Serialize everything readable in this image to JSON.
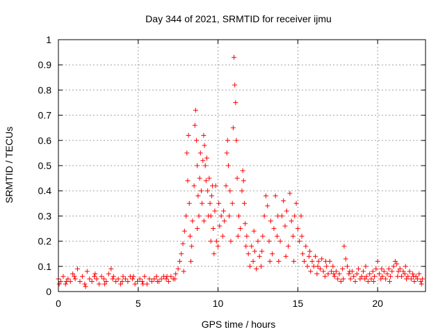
{
  "chart_data": {
    "type": "scatter",
    "title": "Day 344 of 2021, SRMTID for receiver ijmu",
    "xlabel": "GPS time / hours",
    "ylabel": "SRMTID / TECUs",
    "xlim": [
      0,
      23
    ],
    "ylim": [
      0,
      1
    ],
    "xticks": [
      0,
      5,
      10,
      15,
      20
    ],
    "yticks": [
      0,
      0.1,
      0.2,
      0.3,
      0.4,
      0.5,
      0.6,
      0.7,
      0.8,
      0.9,
      1
    ],
    "grid": true,
    "marker": "+",
    "series": [
      {
        "name": "SRMTID",
        "color": "#ff0000",
        "points": [
          [
            0.0,
            0.05
          ],
          [
            0.15,
            0.04
          ],
          [
            0.3,
            0.06
          ],
          [
            0.45,
            0.03
          ],
          [
            0.6,
            0.05
          ],
          [
            0.75,
            0.04
          ],
          [
            0.9,
            0.07
          ],
          [
            1.05,
            0.05
          ],
          [
            1.2,
            0.09
          ],
          [
            1.35,
            0.04
          ],
          [
            1.5,
            0.06
          ],
          [
            1.65,
            0.03
          ],
          [
            1.8,
            0.08
          ],
          [
            1.95,
            0.05
          ],
          [
            2.1,
            0.04
          ],
          [
            2.25,
            0.06
          ],
          [
            2.4,
            0.05
          ],
          [
            2.55,
            0.03
          ],
          [
            2.7,
            0.06
          ],
          [
            2.85,
            0.05
          ],
          [
            3.0,
            0.04
          ],
          [
            3.15,
            0.07
          ],
          [
            3.3,
            0.09
          ],
          [
            3.45,
            0.06
          ],
          [
            3.6,
            0.04
          ],
          [
            3.75,
            0.05
          ],
          [
            3.9,
            0.03
          ],
          [
            4.05,
            0.06
          ],
          [
            4.2,
            0.05
          ],
          [
            4.35,
            0.04
          ],
          [
            4.5,
            0.06
          ],
          [
            4.65,
            0.05
          ],
          [
            4.8,
            0.03
          ],
          [
            4.95,
            0.04
          ],
          [
            5.1,
            0.05
          ],
          [
            5.25,
            0.04
          ],
          [
            5.4,
            0.06
          ],
          [
            5.55,
            0.03
          ],
          [
            5.7,
            0.05
          ],
          [
            5.85,
            0.04
          ],
          [
            6.0,
            0.05
          ],
          [
            6.15,
            0.06
          ],
          [
            6.3,
            0.04
          ],
          [
            6.45,
            0.05
          ],
          [
            6.6,
            0.06
          ],
          [
            6.75,
            0.05
          ],
          [
            6.9,
            0.04
          ],
          [
            7.05,
            0.06
          ],
          [
            7.2,
            0.05
          ],
          [
            7.35,
            0.07
          ],
          [
            7.5,
            0.09
          ],
          [
            7.6,
            0.12
          ],
          [
            7.7,
            0.15
          ],
          [
            7.8,
            0.19
          ],
          [
            7.9,
            0.24
          ],
          [
            8.0,
            0.3
          ],
          [
            8.05,
            0.55
          ],
          [
            8.1,
            0.44
          ],
          [
            8.15,
            0.62
          ],
          [
            8.2,
            0.35
          ],
          [
            8.25,
            0.22
          ],
          [
            8.3,
            0.12
          ],
          [
            8.4,
            0.28
          ],
          [
            8.5,
            0.42
          ],
          [
            8.55,
            0.66
          ],
          [
            8.6,
            0.72
          ],
          [
            8.65,
            0.6
          ],
          [
            8.7,
            0.5
          ],
          [
            8.75,
            0.38
          ],
          [
            8.8,
            0.3
          ],
          [
            8.85,
            0.45
          ],
          [
            8.9,
            0.55
          ],
          [
            8.95,
            0.4
          ],
          [
            9.0,
            0.35
          ],
          [
            9.05,
            0.52
          ],
          [
            9.1,
            0.62
          ],
          [
            9.15,
            0.58
          ],
          [
            9.2,
            0.5
          ],
          [
            9.25,
            0.44
          ],
          [
            9.3,
            0.53
          ],
          [
            9.35,
            0.4
          ],
          [
            9.4,
            0.3
          ],
          [
            9.45,
            0.45
          ],
          [
            9.5,
            0.35
          ],
          [
            9.55,
            0.2
          ],
          [
            9.6,
            0.38
          ],
          [
            9.65,
            0.42
          ],
          [
            9.7,
            0.25
          ],
          [
            9.75,
            0.15
          ],
          [
            9.8,
            0.32
          ],
          [
            9.85,
            0.42
          ],
          [
            9.9,
            0.2
          ],
          [
            10.0,
            0.18
          ],
          [
            10.1,
            0.26
          ],
          [
            10.2,
            0.3
          ],
          [
            10.3,
            0.22
          ],
          [
            10.4,
            0.28
          ],
          [
            10.5,
            0.42
          ],
          [
            10.55,
            0.55
          ],
          [
            10.6,
            0.6
          ],
          [
            10.65,
            0.5
          ],
          [
            10.7,
            0.3
          ],
          [
            10.8,
            0.2
          ],
          [
            10.9,
            0.35
          ],
          [
            10.95,
            0.65
          ],
          [
            11.0,
            0.93
          ],
          [
            11.05,
            0.82
          ],
          [
            11.1,
            0.75
          ],
          [
            11.15,
            0.6
          ],
          [
            11.2,
            0.45
          ],
          [
            11.3,
            0.3
          ],
          [
            11.4,
            0.25
          ],
          [
            11.5,
            0.4
          ],
          [
            11.55,
            0.48
          ],
          [
            11.6,
            0.44
          ],
          [
            11.65,
            0.35
          ],
          [
            11.7,
            0.27
          ],
          [
            11.8,
            0.22
          ],
          [
            11.9,
            0.15
          ],
          [
            12.0,
            0.1
          ],
          [
            12.1,
            0.18
          ],
          [
            12.2,
            0.12
          ],
          [
            12.3,
            0.16
          ],
          [
            12.4,
            0.09
          ],
          [
            12.5,
            0.2
          ],
          [
            12.6,
            0.14
          ],
          [
            12.7,
            0.1
          ],
          [
            12.8,
            0.22
          ],
          [
            12.9,
            0.3
          ],
          [
            13.0,
            0.38
          ],
          [
            13.1,
            0.34
          ],
          [
            13.2,
            0.2
          ],
          [
            13.3,
            0.28
          ],
          [
            13.4,
            0.15
          ],
          [
            13.5,
            0.25
          ],
          [
            13.6,
            0.38
          ],
          [
            13.7,
            0.22
          ],
          [
            13.8,
            0.12
          ],
          [
            13.9,
            0.2
          ],
          [
            14.0,
            0.3
          ],
          [
            14.1,
            0.36
          ],
          [
            14.2,
            0.26
          ],
          [
            14.3,
            0.32
          ],
          [
            14.4,
            0.18
          ],
          [
            14.5,
            0.39
          ],
          [
            14.6,
            0.28
          ],
          [
            14.7,
            0.22
          ],
          [
            14.8,
            0.3
          ],
          [
            14.9,
            0.35
          ],
          [
            15.0,
            0.25
          ],
          [
            15.1,
            0.2
          ],
          [
            15.2,
            0.3
          ],
          [
            15.3,
            0.15
          ],
          [
            15.4,
            0.12
          ],
          [
            15.5,
            0.18
          ],
          [
            15.6,
            0.1
          ],
          [
            15.7,
            0.14
          ],
          [
            15.8,
            0.08
          ],
          [
            15.9,
            0.12
          ],
          [
            16.0,
            0.1
          ],
          [
            16.1,
            0.14
          ],
          [
            16.2,
            0.07
          ],
          [
            16.3,
            0.12
          ],
          [
            16.4,
            0.09
          ],
          [
            16.5,
            0.13
          ],
          [
            16.6,
            0.08
          ],
          [
            16.7,
            0.06
          ],
          [
            16.8,
            0.1
          ],
          [
            16.9,
            0.07
          ],
          [
            17.0,
            0.12
          ],
          [
            17.1,
            0.08
          ],
          [
            17.2,
            0.1
          ],
          [
            17.3,
            0.06
          ],
          [
            17.4,
            0.08
          ],
          [
            17.5,
            0.05
          ],
          [
            17.6,
            0.07
          ],
          [
            17.7,
            0.04
          ],
          [
            17.8,
            0.09
          ],
          [
            17.9,
            0.18
          ],
          [
            18.0,
            0.13
          ],
          [
            18.1,
            0.1
          ],
          [
            18.2,
            0.07
          ],
          [
            18.3,
            0.05
          ],
          [
            18.4,
            0.08
          ],
          [
            18.5,
            0.06
          ],
          [
            18.6,
            0.04
          ],
          [
            18.7,
            0.07
          ],
          [
            18.8,
            0.09
          ],
          [
            18.9,
            0.05
          ],
          [
            19.0,
            0.06
          ],
          [
            19.1,
            0.08
          ],
          [
            19.2,
            0.05
          ],
          [
            19.3,
            0.06
          ],
          [
            19.4,
            0.04
          ],
          [
            19.5,
            0.07
          ],
          [
            19.6,
            0.05
          ],
          [
            19.7,
            0.08
          ],
          [
            19.8,
            0.06
          ],
          [
            19.9,
            0.09
          ],
          [
            20.0,
            0.12
          ],
          [
            20.1,
            0.07
          ],
          [
            20.2,
            0.05
          ],
          [
            20.3,
            0.06
          ],
          [
            20.4,
            0.08
          ],
          [
            20.5,
            0.05
          ],
          [
            20.6,
            0.07
          ],
          [
            20.7,
            0.09
          ],
          [
            20.8,
            0.06
          ],
          [
            20.9,
            0.08
          ],
          [
            21.0,
            0.1
          ],
          [
            21.1,
            0.12
          ],
          [
            21.2,
            0.11
          ],
          [
            21.3,
            0.08
          ],
          [
            21.4,
            0.09
          ],
          [
            21.5,
            0.06
          ],
          [
            21.6,
            0.08
          ],
          [
            21.7,
            0.07
          ],
          [
            21.8,
            0.05
          ],
          [
            21.9,
            0.06
          ],
          [
            22.0,
            0.08
          ],
          [
            22.1,
            0.05
          ],
          [
            22.2,
            0.07
          ],
          [
            22.3,
            0.04
          ],
          [
            22.4,
            0.06
          ],
          [
            22.5,
            0.05
          ],
          [
            22.6,
            0.07
          ],
          [
            22.7,
            0.04
          ],
          [
            22.8,
            0.05
          ],
          [
            0.05,
            0.03
          ],
          [
            0.5,
            0.04
          ],
          [
            1.0,
            0.06
          ],
          [
            1.7,
            0.02
          ],
          [
            2.3,
            0.07
          ],
          [
            2.9,
            0.03
          ],
          [
            3.4,
            0.05
          ],
          [
            4.0,
            0.04
          ],
          [
            4.7,
            0.06
          ],
          [
            5.3,
            0.03
          ],
          [
            6.2,
            0.04
          ],
          [
            6.8,
            0.06
          ],
          [
            7.3,
            0.05
          ],
          [
            7.85,
            0.08
          ],
          [
            8.35,
            0.18
          ],
          [
            8.7,
            0.25
          ],
          [
            9.12,
            0.28
          ],
          [
            9.55,
            0.3
          ],
          [
            10.05,
            0.35
          ],
          [
            10.35,
            0.32
          ],
          [
            10.75,
            0.4
          ],
          [
            11.25,
            0.22
          ],
          [
            11.75,
            0.18
          ],
          [
            12.25,
            0.24
          ],
          [
            12.75,
            0.16
          ],
          [
            13.25,
            0.12
          ],
          [
            13.75,
            0.3
          ],
          [
            14.25,
            0.14
          ],
          [
            14.75,
            0.12
          ],
          [
            15.25,
            0.22
          ],
          [
            15.75,
            0.16
          ],
          [
            16.25,
            0.1
          ],
          [
            16.75,
            0.12
          ],
          [
            17.25,
            0.07
          ],
          [
            17.85,
            0.05
          ],
          [
            18.25,
            0.08
          ],
          [
            19.25,
            0.1
          ],
          [
            19.75,
            0.04
          ],
          [
            20.25,
            0.09
          ],
          [
            20.75,
            0.04
          ],
          [
            21.25,
            0.06
          ],
          [
            21.75,
            0.1
          ],
          [
            22.25,
            0.06
          ],
          [
            22.75,
            0.03
          ]
        ]
      }
    ]
  }
}
